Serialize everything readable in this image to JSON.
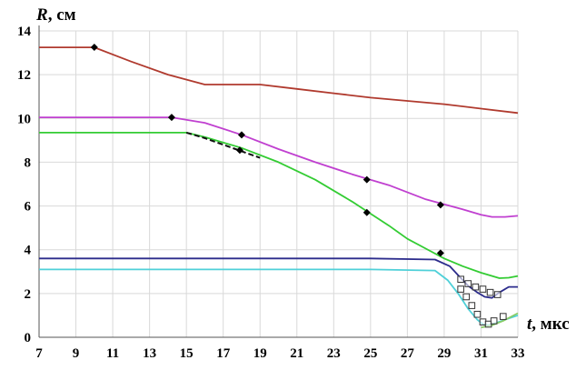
{
  "chart_data": {
    "type": "line",
    "xlabel": {
      "var": "t",
      "unit": ", мкс"
    },
    "ylabel": {
      "var": "R",
      "unit": ", см"
    },
    "xlim": [
      7,
      33
    ],
    "ylim": [
      0,
      14
    ],
    "xticks": [
      "7",
      "9",
      "11",
      "13",
      "15",
      "17",
      "19",
      "21",
      "23",
      "25",
      "27",
      "29",
      "31",
      "33"
    ],
    "yticks": [
      "0",
      "2",
      "4",
      "6",
      "8",
      "10",
      "12",
      "14"
    ],
    "grid": true,
    "series": [
      {
        "color": "#b03a2e",
        "marker": "none",
        "x": [
          7,
          10,
          12,
          14,
          16,
          17,
          19,
          21,
          23,
          25,
          27,
          29,
          31,
          33
        ],
        "y": [
          13.25,
          13.25,
          12.6,
          12.0,
          11.55,
          11.55,
          11.55,
          11.35,
          11.15,
          10.95,
          10.8,
          10.65,
          10.45,
          10.25
        ]
      },
      {
        "color": "#c040d0",
        "marker": "none",
        "x": [
          7,
          14.2,
          16,
          18,
          20,
          22,
          24,
          26,
          28,
          30,
          31,
          31.6,
          32.3,
          33
        ],
        "y": [
          10.05,
          10.05,
          9.8,
          9.25,
          8.6,
          8.0,
          7.45,
          6.95,
          6.3,
          5.85,
          5.6,
          5.5,
          5.5,
          5.55
        ]
      },
      {
        "color": "#33cc33",
        "marker": "none",
        "x": [
          7,
          15,
          16,
          18,
          20,
          22,
          24,
          25,
          26,
          27,
          28,
          29,
          30,
          31,
          32,
          32.5,
          33
        ],
        "y": [
          9.35,
          9.35,
          9.15,
          8.65,
          8.0,
          7.2,
          6.2,
          5.65,
          5.1,
          4.5,
          4.05,
          3.6,
          3.25,
          2.95,
          2.7,
          2.72,
          2.8
        ]
      },
      {
        "color": "#2c2c8c",
        "marker": "none",
        "x": [
          7,
          15,
          20,
          25,
          28.5,
          29.3,
          29.8,
          30.3,
          30.8,
          31.2,
          31.6,
          32,
          32.5,
          33
        ],
        "y": [
          3.6,
          3.6,
          3.6,
          3.6,
          3.55,
          3.25,
          2.8,
          2.35,
          2.05,
          1.85,
          1.8,
          2.05,
          2.3,
          2.3
        ]
      },
      {
        "color": "#4fd0d8",
        "marker": "none",
        "x": [
          7,
          15,
          20,
          25,
          28.5,
          29.2,
          29.8,
          30.3,
          30.8,
          31.1,
          31.4,
          31.8,
          32.3,
          33
        ],
        "y": [
          3.1,
          3.1,
          3.1,
          3.1,
          3.05,
          2.6,
          1.95,
          1.3,
          0.8,
          0.6,
          0.55,
          0.65,
          0.8,
          1.0
        ]
      },
      {
        "color": "#88cc66",
        "marker": "none",
        "x": [
          31,
          31.6,
          32.2,
          33
        ],
        "y": [
          0.45,
          0.55,
          0.75,
          1.1
        ]
      },
      {
        "color": "#111111",
        "marker": "none",
        "dash": true,
        "x": [
          15,
          16,
          17,
          18,
          19
        ],
        "y": [
          9.35,
          9.1,
          8.8,
          8.5,
          8.2
        ]
      },
      {
        "color": "#000000",
        "marker": "diamond",
        "x": [
          10,
          14.2,
          18,
          24.8,
          28.8,
          17.9,
          24.8,
          28.8
        ],
        "y": [
          13.25,
          10.05,
          9.25,
          7.2,
          6.05,
          8.55,
          5.7,
          3.85
        ]
      },
      {
        "color": "#333333",
        "marker": "square",
        "x": [
          29.9,
          30.3,
          30.7,
          31.1,
          31.5,
          31.9
        ],
        "y": [
          2.65,
          2.45,
          2.3,
          2.2,
          2.05,
          1.95
        ]
      },
      {
        "color": "#333333",
        "marker": "square",
        "x": [
          29.9,
          30.2,
          30.5,
          30.8,
          31.1,
          31.4,
          31.7,
          32.2
        ],
        "y": [
          2.2,
          1.85,
          1.45,
          1.05,
          0.7,
          0.6,
          0.75,
          0.95
        ]
      }
    ]
  }
}
